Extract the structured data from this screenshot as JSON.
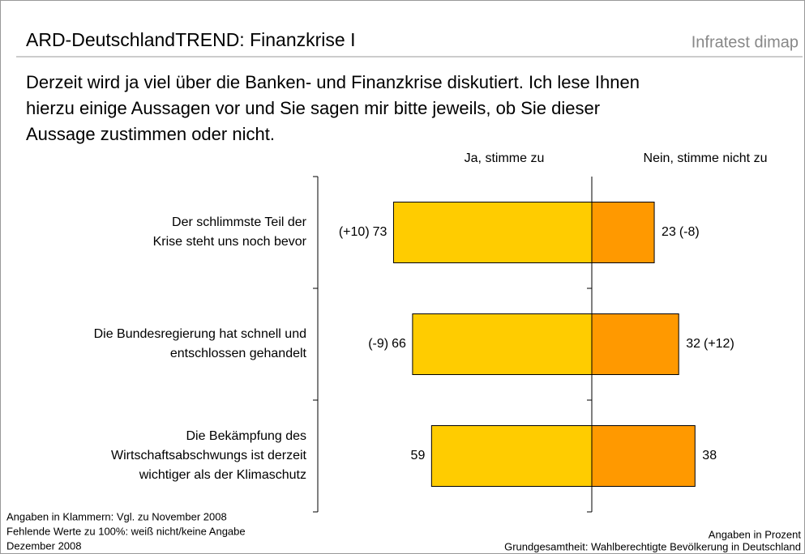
{
  "chart_data": {
    "type": "diverging_bar",
    "title": "ARD-DeutschlandTREND: Finanzkrise I",
    "brand": "Infratest dimap",
    "question": [
      "Derzeit wird ja viel über die Banken- und Finanzkrise diskutiert. Ich lese Ihnen",
      "hierzu einige Aussagen vor und Sie sagen mir bitte jeweils, ob Sie dieser",
      "Aussage zustimmen oder nicht."
    ],
    "categories": [
      [
        "Der schlimmste Teil der",
        "Krise steht uns noch bevor"
      ],
      [
        "Die Bundesregierung hat schnell und",
        "entschlossen gehandelt"
      ],
      [
        "Die Bekämpfung des",
        "Wirtschaftsabschwungs ist derzeit",
        "wichtiger als der Klimaschutz"
      ]
    ],
    "series": [
      {
        "name": "Ja, stimme zu",
        "color": "#ffcc00",
        "values": [
          73,
          66,
          59
        ],
        "changes": [
          10,
          -9,
          null
        ],
        "change_labels": [
          "(+10)",
          "(-9)",
          null
        ]
      },
      {
        "name": "Nein, stimme nicht zu",
        "color": "#ff9900",
        "values": [
          23,
          32,
          38
        ],
        "changes": [
          -8,
          12,
          null
        ],
        "change_labels": [
          "(-8)",
          "(+12)",
          null
        ]
      }
    ],
    "notes": [
      "Angaben in Klammern: Vgl. zu November 2008",
      "Fehlende Werte zu 100%: weiß nicht/keine Angabe",
      "Dezember 2008"
    ],
    "unit_note": "Angaben in Prozent",
    "source": "Grundgesamtheit: Wahlberechtigte Bevölkerung in Deutschland"
  }
}
